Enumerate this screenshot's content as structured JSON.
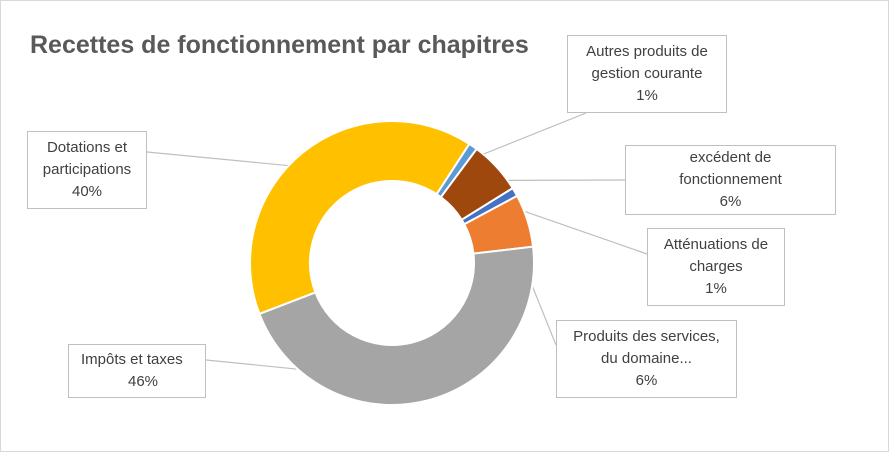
{
  "chart_data": {
    "type": "pie",
    "title": "Recettes de fonctionnement par chapitres",
    "series": [
      {
        "name": "Dotations et\nparticipations",
        "pct_label": "40%",
        "value": 40,
        "color": "#ffc000"
      },
      {
        "name": "Autres produits de\ngestion courante",
        "pct_label": "1%",
        "value": 1,
        "color": "#5b9bd5"
      },
      {
        "name": "excédent de\nfonctionnement",
        "pct_label": "6%",
        "value": 6,
        "color": "#9e480e"
      },
      {
        "name": "Atténuations de\ncharges",
        "pct_label": "1%",
        "value": 1,
        "color": "#4472c4"
      },
      {
        "name": "Produits des services,\ndu domaine...",
        "pct_label": "6%",
        "value": 6,
        "color": "#ed7d31"
      },
      {
        "name": "Impôts et taxes",
        "pct_label": "46%",
        "value": 46,
        "color": "#a5a5a5"
      }
    ]
  }
}
